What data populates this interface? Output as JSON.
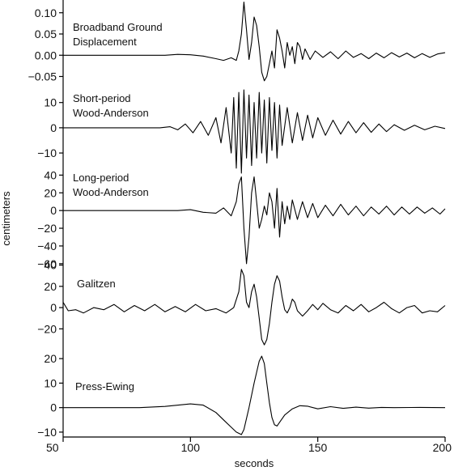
{
  "chart_data": {
    "type": "line",
    "title": "",
    "xlabel": "seconds",
    "ylabel": "centimeters",
    "xlim": [
      50,
      200
    ],
    "x_ticks": [
      50,
      100,
      150,
      200
    ],
    "grid": false,
    "panels": [
      {
        "name": "Broadband Ground Displacement",
        "label_lines": [
          "Broadband Ground",
          "Displacement"
        ],
        "ylim": [
          -0.07,
          0.13
        ],
        "y_ticks": [
          0.1,
          0.05,
          0.0,
          -0.05
        ],
        "y_tick_labels": [
          "0.10",
          "0.05",
          "0.00",
          "−0.05"
        ],
        "points": [
          [
            50,
            0
          ],
          [
            90,
            0
          ],
          [
            95,
            0.002
          ],
          [
            100,
            0.001
          ],
          [
            105,
            -0.002
          ],
          [
            110,
            -0.008
          ],
          [
            113,
            -0.012
          ],
          [
            116,
            -0.006
          ],
          [
            118,
            -0.012
          ],
          [
            119,
            0.01
          ],
          [
            120,
            0.05
          ],
          [
            121,
            0.125
          ],
          [
            122,
            0.06
          ],
          [
            123,
            -0.01
          ],
          [
            124,
            0.03
          ],
          [
            125,
            0.09
          ],
          [
            126,
            0.07
          ],
          [
            127,
            0.02
          ],
          [
            128,
            -0.04
          ],
          [
            129,
            -0.06
          ],
          [
            130,
            -0.05
          ],
          [
            131,
            -0.02
          ],
          [
            132,
            0.01
          ],
          [
            133,
            -0.03
          ],
          [
            134,
            0.06
          ],
          [
            135,
            0.04
          ],
          [
            136,
            0.01
          ],
          [
            137,
            -0.03
          ],
          [
            138,
            0.03
          ],
          [
            139,
            0.0
          ],
          [
            140,
            0.02
          ],
          [
            141,
            -0.02
          ],
          [
            142,
            0.03
          ],
          [
            143,
            0.02
          ],
          [
            144,
            -0.01
          ],
          [
            145,
            0.015
          ],
          [
            147,
            -0.01
          ],
          [
            149,
            0.01
          ],
          [
            152,
            -0.005
          ],
          [
            155,
            0.008
          ],
          [
            158,
            -0.008
          ],
          [
            161,
            0.01
          ],
          [
            164,
            -0.005
          ],
          [
            167,
            0.004
          ],
          [
            170,
            -0.008
          ],
          [
            173,
            0.005
          ],
          [
            176,
            -0.006
          ],
          [
            179,
            0.006
          ],
          [
            182,
            -0.004
          ],
          [
            185,
            0.005
          ],
          [
            188,
            -0.006
          ],
          [
            191,
            0.004
          ],
          [
            194,
            -0.005
          ],
          [
            197,
            0.003
          ],
          [
            200,
            0.006
          ]
        ]
      },
      {
        "name": "Short-period Wood-Anderson",
        "label_lines": [
          "Short-period",
          "Wood-Anderson"
        ],
        "ylim": [
          -18,
          16
        ],
        "y_ticks": [
          10,
          0,
          -10
        ],
        "y_tick_labels": [
          "10",
          "0",
          "−10"
        ],
        "points": [
          [
            50,
            0
          ],
          [
            88,
            0
          ],
          [
            92,
            0.4
          ],
          [
            95,
            -0.8
          ],
          [
            98,
            1.5
          ],
          [
            101,
            -2
          ],
          [
            104,
            2.5
          ],
          [
            107,
            -3
          ],
          [
            110,
            4
          ],
          [
            112,
            -6
          ],
          [
            114,
            8
          ],
          [
            116,
            -10
          ],
          [
            117,
            12
          ],
          [
            118,
            -16
          ],
          [
            119,
            14
          ],
          [
            120,
            -18
          ],
          [
            121,
            15
          ],
          [
            122,
            -12
          ],
          [
            123,
            13
          ],
          [
            124,
            -15
          ],
          [
            125,
            10
          ],
          [
            126,
            -12
          ],
          [
            127,
            14
          ],
          [
            128,
            -10
          ],
          [
            129,
            11
          ],
          [
            130,
            -14
          ],
          [
            131,
            12
          ],
          [
            132,
            -9
          ],
          [
            133,
            10
          ],
          [
            134,
            -12
          ],
          [
            135,
            9
          ],
          [
            136,
            -7
          ],
          [
            138,
            8
          ],
          [
            140,
            -6
          ],
          [
            142,
            6
          ],
          [
            144,
            -5
          ],
          [
            146,
            5
          ],
          [
            148,
            -4
          ],
          [
            150,
            4
          ],
          [
            153,
            -3
          ],
          [
            156,
            3
          ],
          [
            159,
            -2.5
          ],
          [
            162,
            2.5
          ],
          [
            165,
            -2
          ],
          [
            168,
            2
          ],
          [
            171,
            -1.8
          ],
          [
            174,
            1.5
          ],
          [
            177,
            -1.5
          ],
          [
            180,
            1.2
          ],
          [
            184,
            -1
          ],
          [
            188,
            1
          ],
          [
            192,
            -0.8
          ],
          [
            196,
            0.6
          ],
          [
            200,
            -0.3
          ]
        ]
      },
      {
        "name": "Long-period Wood-Anderson",
        "label_lines": [
          "Long-period",
          "Wood-Anderson"
        ],
        "ylim": [
          -62,
          44
        ],
        "y_ticks": [
          40,
          20,
          0,
          -20,
          -40,
          -60
        ],
        "y_tick_labels": [
          "40",
          "20",
          "0",
          "−20",
          "−40",
          "−60"
        ],
        "points": [
          [
            50,
            0
          ],
          [
            95,
            0
          ],
          [
            100,
            1
          ],
          [
            105,
            -2
          ],
          [
            110,
            -3
          ],
          [
            113,
            3
          ],
          [
            116,
            -6
          ],
          [
            118,
            10
          ],
          [
            119,
            30
          ],
          [
            120,
            38
          ],
          [
            121,
            -20
          ],
          [
            122,
            -60
          ],
          [
            123,
            -30
          ],
          [
            124,
            20
          ],
          [
            125,
            38
          ],
          [
            126,
            10
          ],
          [
            127,
            -20
          ],
          [
            128,
            -10
          ],
          [
            129,
            5
          ],
          [
            130,
            -5
          ],
          [
            131,
            20
          ],
          [
            132,
            10
          ],
          [
            133,
            -20
          ],
          [
            134,
            25
          ],
          [
            135,
            -30
          ],
          [
            136,
            10
          ],
          [
            137,
            -15
          ],
          [
            138,
            5
          ],
          [
            139,
            -10
          ],
          [
            140,
            12
          ],
          [
            142,
            -10
          ],
          [
            144,
            10
          ],
          [
            146,
            -8
          ],
          [
            148,
            8
          ],
          [
            150,
            -8
          ],
          [
            153,
            6
          ],
          [
            156,
            -6
          ],
          [
            159,
            7
          ],
          [
            162,
            -5
          ],
          [
            165,
            5
          ],
          [
            168,
            -6
          ],
          [
            171,
            4
          ],
          [
            174,
            -4
          ],
          [
            177,
            5
          ],
          [
            180,
            -5
          ],
          [
            183,
            4
          ],
          [
            186,
            -4
          ],
          [
            189,
            4
          ],
          [
            192,
            -3
          ],
          [
            195,
            3
          ],
          [
            198,
            -4
          ],
          [
            200,
            2
          ]
        ]
      },
      {
        "name": "Galitzen",
        "label_lines": [
          "Galitzen"
        ],
        "ylim": [
          -38,
          45
        ],
        "y_ticks": [
          40,
          20,
          0,
          -20
        ],
        "y_tick_labels": [
          "40",
          "20",
          "0",
          "−20"
        ],
        "points": [
          [
            50,
            5
          ],
          [
            52,
            -3
          ],
          [
            55,
            -2
          ],
          [
            58,
            -5
          ],
          [
            62,
            0
          ],
          [
            66,
            -2
          ],
          [
            70,
            3
          ],
          [
            74,
            -4
          ],
          [
            78,
            2
          ],
          [
            82,
            -3
          ],
          [
            86,
            3
          ],
          [
            90,
            -4
          ],
          [
            94,
            1
          ],
          [
            98,
            -4
          ],
          [
            102,
            3
          ],
          [
            106,
            -3
          ],
          [
            110,
            -1
          ],
          [
            114,
            -5
          ],
          [
            117,
            0
          ],
          [
            119,
            15
          ],
          [
            120,
            36
          ],
          [
            121,
            30
          ],
          [
            122,
            5
          ],
          [
            123,
            0
          ],
          [
            124,
            15
          ],
          [
            125,
            22
          ],
          [
            126,
            10
          ],
          [
            127,
            -10
          ],
          [
            128,
            -30
          ],
          [
            129,
            -35
          ],
          [
            130,
            -30
          ],
          [
            131,
            -15
          ],
          [
            132,
            5
          ],
          [
            133,
            22
          ],
          [
            134,
            30
          ],
          [
            135,
            25
          ],
          [
            136,
            10
          ],
          [
            137,
            -2
          ],
          [
            138,
            -5
          ],
          [
            139,
            0
          ],
          [
            140,
            8
          ],
          [
            141,
            5
          ],
          [
            142,
            -3
          ],
          [
            144,
            -8
          ],
          [
            146,
            -3
          ],
          [
            148,
            3
          ],
          [
            150,
            -2
          ],
          [
            152,
            4
          ],
          [
            155,
            -2
          ],
          [
            158,
            -5
          ],
          [
            161,
            2
          ],
          [
            164,
            -3
          ],
          [
            167,
            3
          ],
          [
            170,
            -4
          ],
          [
            173,
            0
          ],
          [
            176,
            5
          ],
          [
            179,
            -1
          ],
          [
            182,
            -5
          ],
          [
            185,
            0
          ],
          [
            188,
            2
          ],
          [
            191,
            -5
          ],
          [
            194,
            -3
          ],
          [
            197,
            -4
          ],
          [
            200,
            2
          ]
        ]
      },
      {
        "name": "Press-Ewing",
        "label_lines": [
          "Press-Ewing"
        ],
        "ylim": [
          -12,
          25
        ],
        "y_ticks": [
          20,
          10,
          0,
          -10
        ],
        "y_tick_labels": [
          "20",
          "10",
          "0",
          "−10"
        ],
        "points": [
          [
            50,
            0
          ],
          [
            80,
            0
          ],
          [
            90,
            0.5
          ],
          [
            100,
            1.5
          ],
          [
            105,
            1
          ],
          [
            110,
            -2
          ],
          [
            113,
            -5
          ],
          [
            116,
            -8
          ],
          [
            118,
            -10
          ],
          [
            120,
            -11
          ],
          [
            121,
            -9
          ],
          [
            123,
            0
          ],
          [
            125,
            10
          ],
          [
            127,
            19
          ],
          [
            128,
            21
          ],
          [
            129,
            18
          ],
          [
            130,
            10
          ],
          [
            131,
            2
          ],
          [
            132,
            -4
          ],
          [
            133,
            -7
          ],
          [
            134,
            -7.5
          ],
          [
            135,
            -6
          ],
          [
            137,
            -3
          ],
          [
            140,
            -0.5
          ],
          [
            143,
            0.8
          ],
          [
            146,
            0.6
          ],
          [
            150,
            -0.5
          ],
          [
            155,
            0.4
          ],
          [
            160,
            -0.3
          ],
          [
            165,
            0.2
          ],
          [
            170,
            -0.2
          ],
          [
            175,
            0.1
          ],
          [
            180,
            0
          ],
          [
            190,
            0.1
          ],
          [
            200,
            0
          ]
        ]
      }
    ]
  }
}
